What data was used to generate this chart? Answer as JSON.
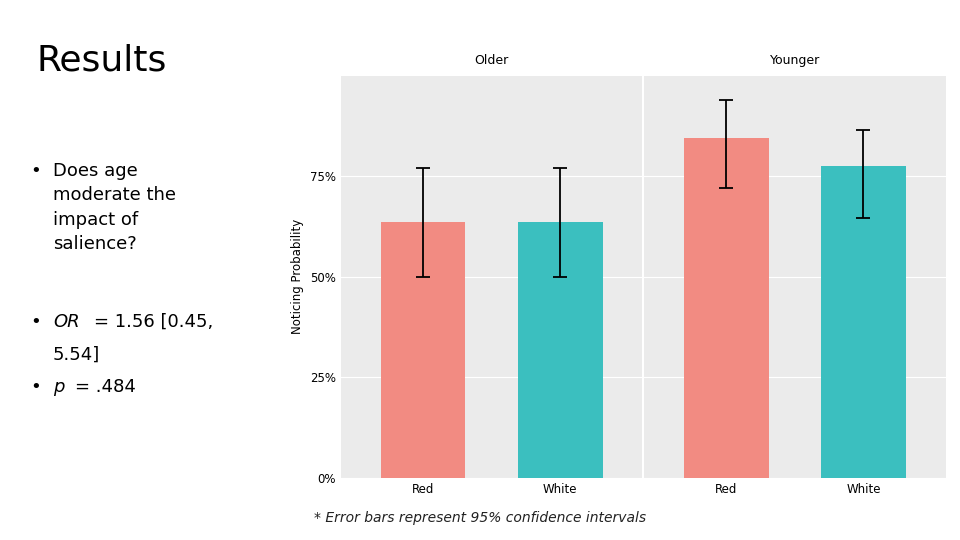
{
  "title": "Results",
  "footnote": "* Error bars represent 95% confidence intervals",
  "panel_titles": [
    "Older",
    "Younger"
  ],
  "x_labels": [
    "Red",
    "White"
  ],
  "ylabel": "Noticing Probability",
  "yticks": [
    0.0,
    0.25,
    0.5,
    0.75
  ],
  "ytick_labels": [
    "0%",
    "25%",
    "50%",
    "75%"
  ],
  "bar_values": {
    "Older": {
      "Red": 0.635,
      "White": 0.635
    },
    "Younger": {
      "Red": 0.845,
      "White": 0.775
    }
  },
  "error_bars": {
    "Older": {
      "Red": {
        "lower": 0.135,
        "upper": 0.135
      },
      "White": {
        "lower": 0.135,
        "upper": 0.135
      }
    },
    "Younger": {
      "Red": {
        "lower": 0.125,
        "upper": 0.095
      },
      "White": {
        "lower": 0.13,
        "upper": 0.09
      }
    }
  },
  "bar_color_red": "#F28B82",
  "bar_color_teal": "#3BBFBF",
  "panel_bg": "#EBEBEB",
  "strip_bg": "#D4D4D4",
  "grid_color": "#FFFFFF",
  "slide_bg": "#FFFFFF",
  "title_fontsize": 26,
  "body_fontsize": 13,
  "label_fontsize": 8.5,
  "ylabel_fontsize": 8.5,
  "strip_fontsize": 9,
  "footnote_fontsize": 10
}
